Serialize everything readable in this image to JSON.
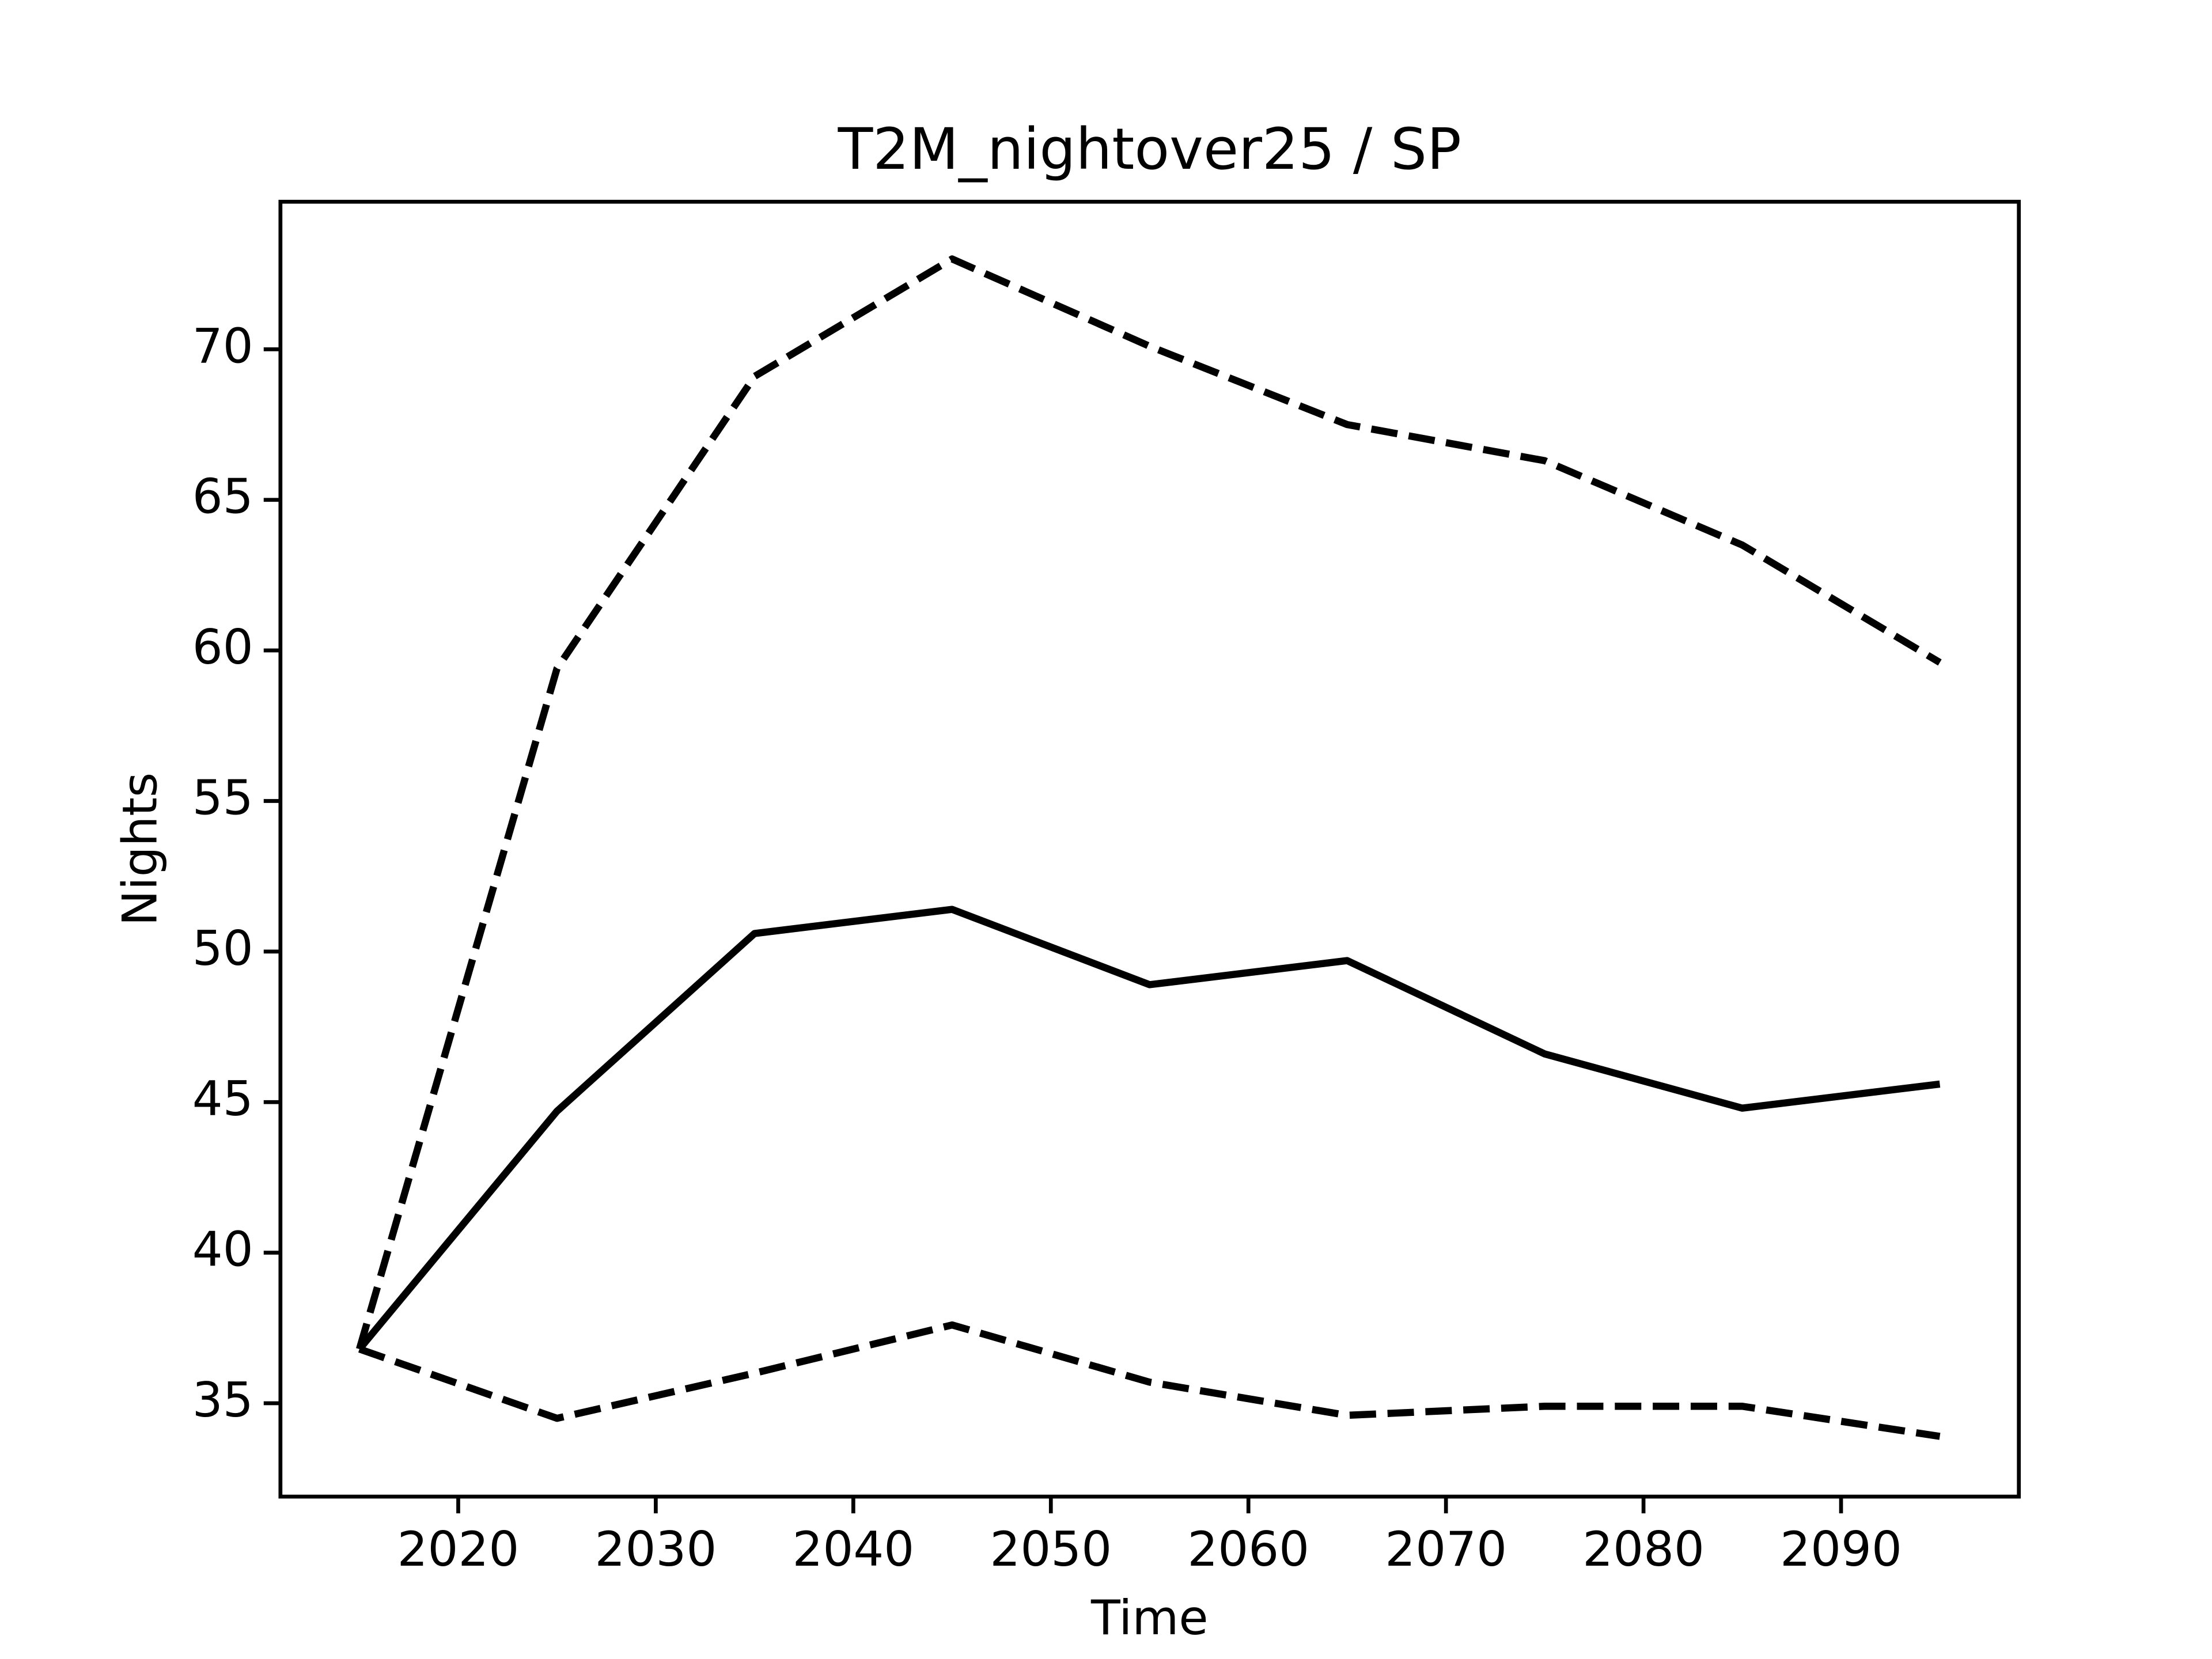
{
  "chart_data": {
    "type": "line",
    "title": "T2M_nightover25 / SP",
    "xlabel": "Time",
    "ylabel": "Nights",
    "x": [
      2015,
      2025,
      2035,
      2045,
      2055,
      2065,
      2075,
      2085,
      2095
    ],
    "series": [
      {
        "color": "#000000",
        "linestyle": "solid",
        "values": [
          36.8,
          44.7,
          50.6,
          51.4,
          48.9,
          49.7,
          46.6,
          44.8,
          45.6
        ]
      },
      {
        "color": "#000000",
        "linestyle": "dashed",
        "values": [
          36.8,
          59.4,
          69.1,
          73.0,
          70.1,
          67.5,
          66.3,
          63.5,
          59.6
        ]
      },
      {
        "color": "#000000",
        "linestyle": "dashed",
        "values": [
          36.8,
          34.5,
          36.0,
          37.6,
          35.7,
          34.6,
          34.9,
          34.9,
          33.9
        ]
      }
    ],
    "xlim": [
      2011,
      2099
    ],
    "xticks": [
      2020,
      2030,
      2040,
      2050,
      2060,
      2070,
      2080,
      2090
    ],
    "ylim": [
      31.9,
      74.9
    ],
    "yticks": [
      35,
      40,
      45,
      50,
      55,
      60,
      65,
      70
    ],
    "grid": false
  }
}
